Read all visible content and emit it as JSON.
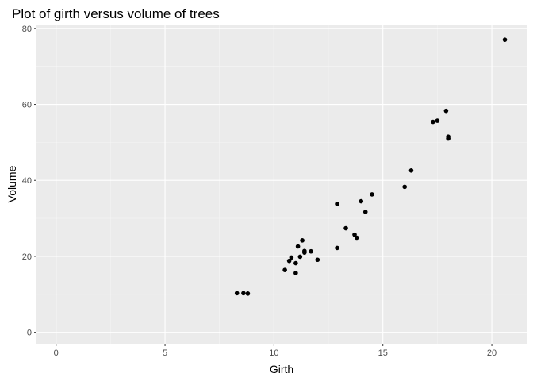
{
  "chart_data": {
    "type": "scatter",
    "title": "Plot of girth versus volume of trees",
    "xlabel": "Girth",
    "ylabel": "Volume",
    "xlim": [
      -0.9,
      21.6
    ],
    "ylim": [
      -3.0,
      80.8
    ],
    "x_ticks": [
      0,
      5,
      10,
      15,
      20
    ],
    "y_ticks": [
      0,
      20,
      40,
      60,
      80
    ],
    "grid": true,
    "legend": "none",
    "colors": {
      "panel_background": "#ebebeb",
      "grid_major": "#ffffff",
      "grid_minor": "#f5f5f5",
      "point": "#000000",
      "tick_label": "#4d4d4d",
      "tick_mark": "#333333"
    },
    "points": [
      {
        "x": 8.3,
        "y": 10.3
      },
      {
        "x": 8.6,
        "y": 10.3
      },
      {
        "x": 8.8,
        "y": 10.2
      },
      {
        "x": 10.5,
        "y": 16.4
      },
      {
        "x": 10.7,
        "y": 18.8
      },
      {
        "x": 10.8,
        "y": 19.7
      },
      {
        "x": 11.0,
        "y": 15.6
      },
      {
        "x": 11.0,
        "y": 18.2
      },
      {
        "x": 11.1,
        "y": 22.6
      },
      {
        "x": 11.2,
        "y": 19.9
      },
      {
        "x": 11.3,
        "y": 24.2
      },
      {
        "x": 11.4,
        "y": 21.0
      },
      {
        "x": 11.4,
        "y": 21.4
      },
      {
        "x": 11.7,
        "y": 21.3
      },
      {
        "x": 12.0,
        "y": 19.1
      },
      {
        "x": 12.9,
        "y": 22.2
      },
      {
        "x": 12.9,
        "y": 33.8
      },
      {
        "x": 13.3,
        "y": 27.4
      },
      {
        "x": 13.7,
        "y": 25.7
      },
      {
        "x": 13.8,
        "y": 24.9
      },
      {
        "x": 14.0,
        "y": 34.5
      },
      {
        "x": 14.2,
        "y": 31.7
      },
      {
        "x": 14.5,
        "y": 36.3
      },
      {
        "x": 16.0,
        "y": 38.3
      },
      {
        "x": 16.3,
        "y": 42.6
      },
      {
        "x": 17.3,
        "y": 55.4
      },
      {
        "x": 17.5,
        "y": 55.7
      },
      {
        "x": 17.9,
        "y": 58.3
      },
      {
        "x": 18.0,
        "y": 51.5
      },
      {
        "x": 18.0,
        "y": 51.0
      },
      {
        "x": 20.6,
        "y": 77.0
      }
    ]
  }
}
